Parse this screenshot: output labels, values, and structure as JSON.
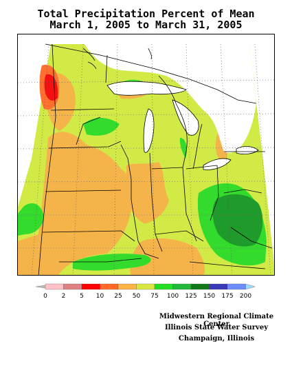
{
  "title": {
    "line1": "Total Precipitation Percent of Mean",
    "line2": "March 1, 2005 to March 31, 2005"
  },
  "legend": {
    "ticks": [
      "0",
      "2",
      "5",
      "10",
      "25",
      "50",
      "75",
      "100",
      "125",
      "150",
      "175",
      "200"
    ],
    "colors": [
      "#b8b8b8",
      "#ffc0c8",
      "#e08080",
      "#ff0000",
      "#ff6a28",
      "#ffb446",
      "#d8e840",
      "#24e024",
      "#22b83a",
      "#0f7a17",
      "#3a3ab8",
      "#6e8cff",
      "#9ed8ff"
    ]
  },
  "map_colors": {
    "orange": "#f4b44a",
    "yellow_green": "#d2ea46",
    "green": "#33dc2c",
    "dark_green": "#1e9b2a",
    "orange_red": "#ff7030",
    "red": "#f21010",
    "lake_white": "#ffffff"
  },
  "credits": {
    "line1": "Midwestern Regional Climate Center",
    "line2": "Illinois State Water Survey",
    "line3": "Champaign, Illinois"
  }
}
